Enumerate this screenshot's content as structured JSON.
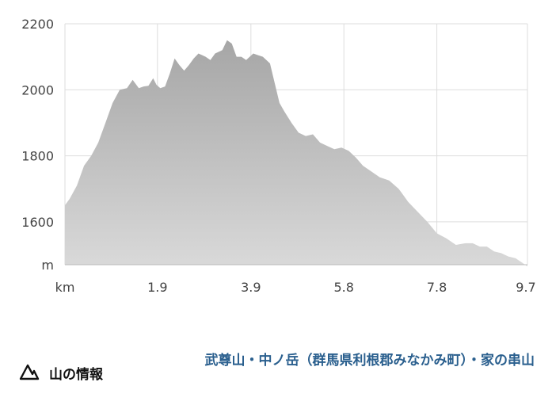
{
  "chart_data": {
    "type": "area",
    "xlabel": "km",
    "ylabel": "m",
    "xlim": [
      0,
      9.7
    ],
    "ylim": [
      1470,
      2200
    ],
    "x_ticks": [
      "1.9",
      "3.9",
      "5.8",
      "7.8",
      "9.7"
    ],
    "x_tick_values": [
      1.94,
      3.9,
      5.85,
      7.8,
      9.7
    ],
    "y_ticks": [
      "2200",
      "2000",
      "1800",
      "1600"
    ],
    "y_tick_values": [
      2200,
      2000,
      1800,
      1600
    ],
    "grid": true,
    "fill_color": "#a6a6a6",
    "fill_color_bottom": "#d9d9d9",
    "grid_color": "#dddddd",
    "x": [
      0,
      0.1,
      0.25,
      0.4,
      0.55,
      0.7,
      0.85,
      1.0,
      1.15,
      1.3,
      1.42,
      1.55,
      1.65,
      1.75,
      1.85,
      1.92,
      2.0,
      2.1,
      2.2,
      2.3,
      2.4,
      2.5,
      2.6,
      2.7,
      2.8,
      2.95,
      3.05,
      3.15,
      3.3,
      3.4,
      3.5,
      3.6,
      3.7,
      3.8,
      3.95,
      4.05,
      4.15,
      4.3,
      4.4,
      4.5,
      4.6,
      4.75,
      4.9,
      5.05,
      5.2,
      5.35,
      5.5,
      5.65,
      5.8,
      5.95,
      6.1,
      6.25,
      6.4,
      6.6,
      6.8,
      7.0,
      7.2,
      7.4,
      7.6,
      7.8,
      8.0,
      8.2,
      8.4,
      8.55,
      8.7,
      8.85,
      9.0,
      9.15,
      9.3,
      9.45,
      9.6,
      9.7
    ],
    "y": [
      1650,
      1670,
      1710,
      1770,
      1800,
      1840,
      1900,
      1960,
      2000,
      2005,
      2030,
      2005,
      2010,
      2012,
      2035,
      2015,
      2005,
      2010,
      2050,
      2095,
      2075,
      2058,
      2075,
      2095,
      2110,
      2100,
      2090,
      2110,
      2120,
      2150,
      2140,
      2100,
      2100,
      2090,
      2110,
      2105,
      2100,
      2080,
      2020,
      1960,
      1935,
      1900,
      1870,
      1860,
      1865,
      1840,
      1830,
      1820,
      1825,
      1815,
      1795,
      1770,
      1755,
      1735,
      1725,
      1700,
      1660,
      1630,
      1600,
      1565,
      1550,
      1530,
      1535,
      1535,
      1525,
      1525,
      1510,
      1505,
      1495,
      1490,
      1475,
      1465
    ]
  },
  "info": {
    "icon": "mountain-icon",
    "label": "山の情報",
    "link_text": "武尊山・中ノ岳（群馬県利根郡みなかみ町）・家の串山",
    "link_color": "#2a5f8e"
  }
}
